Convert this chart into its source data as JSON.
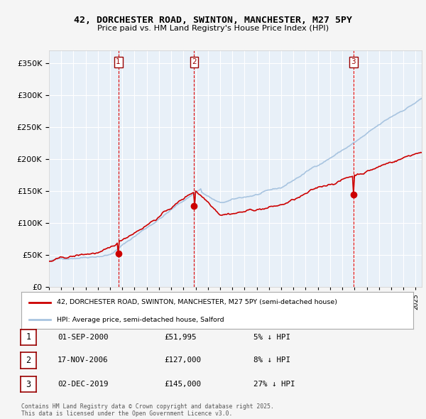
{
  "title": "42, DORCHESTER ROAD, SWINTON, MANCHESTER, M27 5PY",
  "subtitle": "Price paid vs. HM Land Registry's House Price Index (HPI)",
  "legend_line1": "42, DORCHESTER ROAD, SWINTON, MANCHESTER, M27 5PY (semi-detached house)",
  "legend_line2": "HPI: Average price, semi-detached house, Salford",
  "footer": "Contains HM Land Registry data © Crown copyright and database right 2025.\nThis data is licensed under the Open Government Licence v3.0.",
  "transactions": [
    {
      "num": 1,
      "date": "01-SEP-2000",
      "price": 51995,
      "vs_hpi": "5% ↓ HPI",
      "date_x": 2000.67
    },
    {
      "num": 2,
      "date": "17-NOV-2006",
      "price": 127000,
      "vs_hpi": "8% ↓ HPI",
      "date_x": 2006.88
    },
    {
      "num": 3,
      "date": "02-DEC-2019",
      "price": 145000,
      "vs_hpi": "27% ↓ HPI",
      "date_x": 2019.92
    }
  ],
  "hpi_color": "#a8c4e0",
  "price_color": "#cc0000",
  "dashed_color": "#dd0000",
  "plot_bg": "#e8f0f8",
  "grid_color": "#ffffff",
  "ylim": [
    0,
    370000
  ],
  "yticks": [
    0,
    50000,
    100000,
    150000,
    200000,
    250000,
    300000,
    350000
  ],
  "xlim_start": 1995.0,
  "xlim_end": 2025.5
}
